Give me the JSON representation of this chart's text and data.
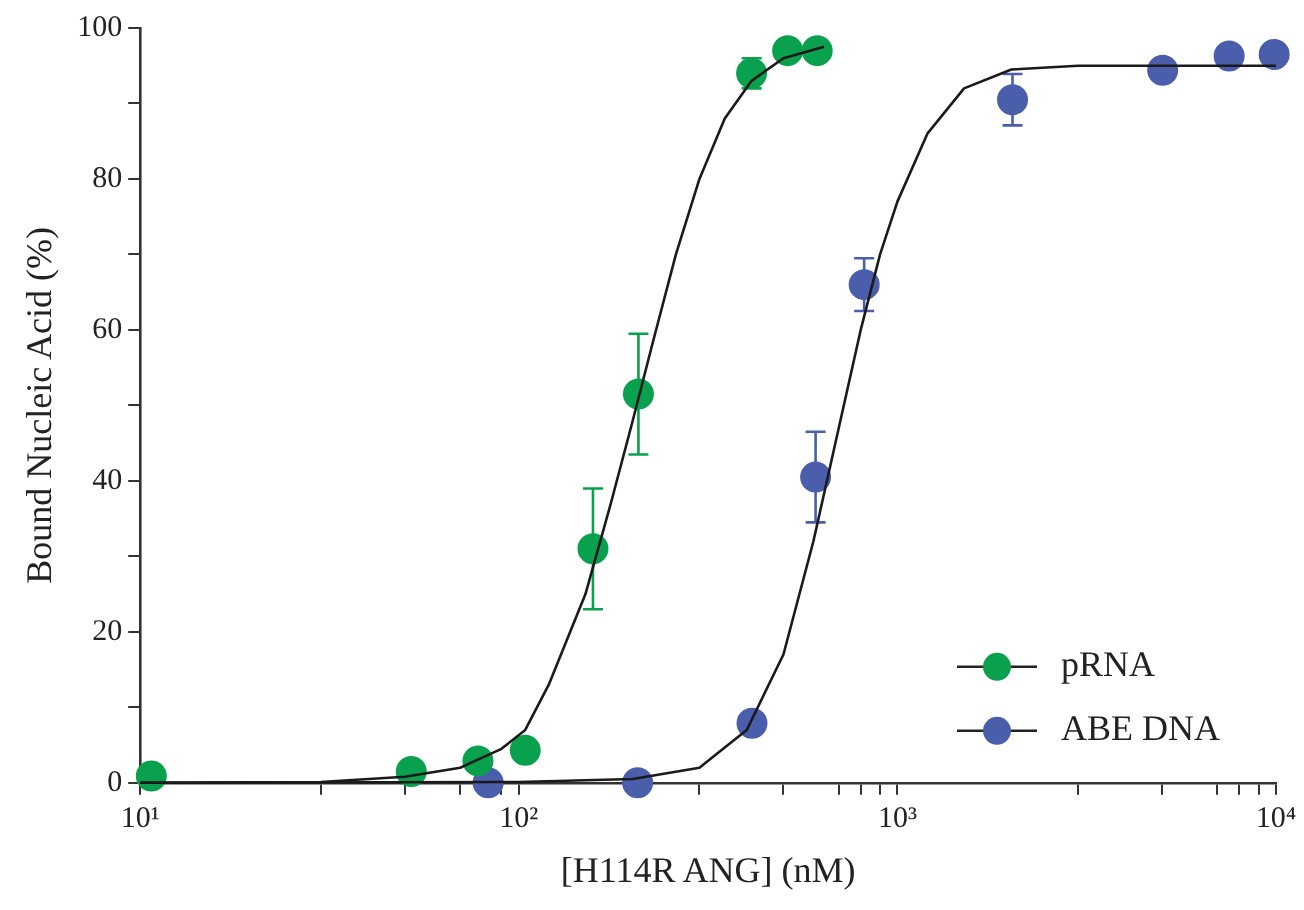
{
  "chart_data": {
    "type": "scatter",
    "xlabel": "[H114R ANG] (nM)",
    "ylabel": "Bound Nucleic Acid (%)",
    "log": "x",
    "xlim": [
      10,
      10000
    ],
    "xticks": [
      {
        "value": 10,
        "label": "10¹"
      },
      {
        "value": 30,
        "label": null
      },
      {
        "value": 50,
        "label": null
      },
      {
        "value": 70,
        "label": null
      },
      {
        "value": 80,
        "label": null
      },
      {
        "value": 90,
        "label": null
      },
      {
        "value": 100,
        "label": "10²"
      },
      {
        "value": 300,
        "label": null
      },
      {
        "value": 500,
        "label": null
      },
      {
        "value": 700,
        "label": null
      },
      {
        "value": 800,
        "label": null
      },
      {
        "value": 900,
        "label": null
      },
      {
        "value": 1000,
        "label": "10³"
      },
      {
        "value": 3000,
        "label": null
      },
      {
        "value": 5000,
        "label": null
      },
      {
        "value": 7000,
        "label": null
      },
      {
        "value": 8000,
        "label": null
      },
      {
        "value": 9000,
        "label": null
      },
      {
        "value": 10000,
        "label": "10⁴"
      }
    ],
    "ylim": [
      0,
      100
    ],
    "yticks": [
      0,
      {
        "value": 10,
        "label": null
      },
      20,
      {
        "value": 30,
        "label": null
      },
      40,
      {
        "value": 50,
        "label": null
      },
      60,
      {
        "value": 70,
        "label": null
      },
      80,
      {
        "value": 90,
        "label": null
      },
      100
    ],
    "grid": false,
    "legend": "bottom right",
    "series": [
      {
        "type": "line",
        "color": "#1a1a1a",
        "marker": "none",
        "line_style": "solid",
        "x": [
          10,
          30,
          50,
          70,
          90,
          104,
          120,
          150,
          175,
          200,
          225,
          260,
          300,
          350,
          412,
          500,
          640
        ],
        "values": [
          0,
          0.1,
          0.8,
          2,
          4.5,
          7,
          13,
          25,
          37,
          48,
          58,
          70,
          80,
          88,
          93,
          96,
          97.5
        ]
      },
      {
        "type": "line",
        "color": "#1a1a1a",
        "marker": "none",
        "line_style": "solid",
        "x": [
          10,
          100,
          200,
          300,
          400,
          500,
          600,
          700,
          800,
          900,
          1000,
          1200,
          1500,
          2000,
          3000,
          10000
        ],
        "values": [
          0,
          0.1,
          0.5,
          2,
          7,
          17,
          32,
          47,
          60,
          70,
          77,
          86,
          92,
          94.5,
          95,
          95
        ]
      },
      {
        "name": "pRNA",
        "color": "#0aa14e",
        "marker": "circle",
        "x": [
          10.7,
          52,
          78,
          104,
          157,
          207,
          412,
          513,
          614
        ],
        "values": [
          0.9,
          1.5,
          2.9,
          4.3,
          31,
          51.5,
          94,
          97,
          97
        ],
        "errors": [
          null,
          null,
          null,
          null,
          8,
          8,
          2,
          null,
          null
        ]
      },
      {
        "name": "ABE DNA",
        "color": "#4a5eab",
        "marker": "circle",
        "x": [
          83,
          206,
          413,
          608,
          817,
          2014,
          5020,
          7520,
          9890
        ],
        "values": [
          0,
          0,
          7.9,
          40.5,
          66,
          90.5,
          94.4,
          96.3,
          96.5
        ],
        "errors": [
          null,
          null,
          null,
          6,
          3.5,
          3.4,
          null,
          null,
          null
        ]
      }
    ]
  }
}
